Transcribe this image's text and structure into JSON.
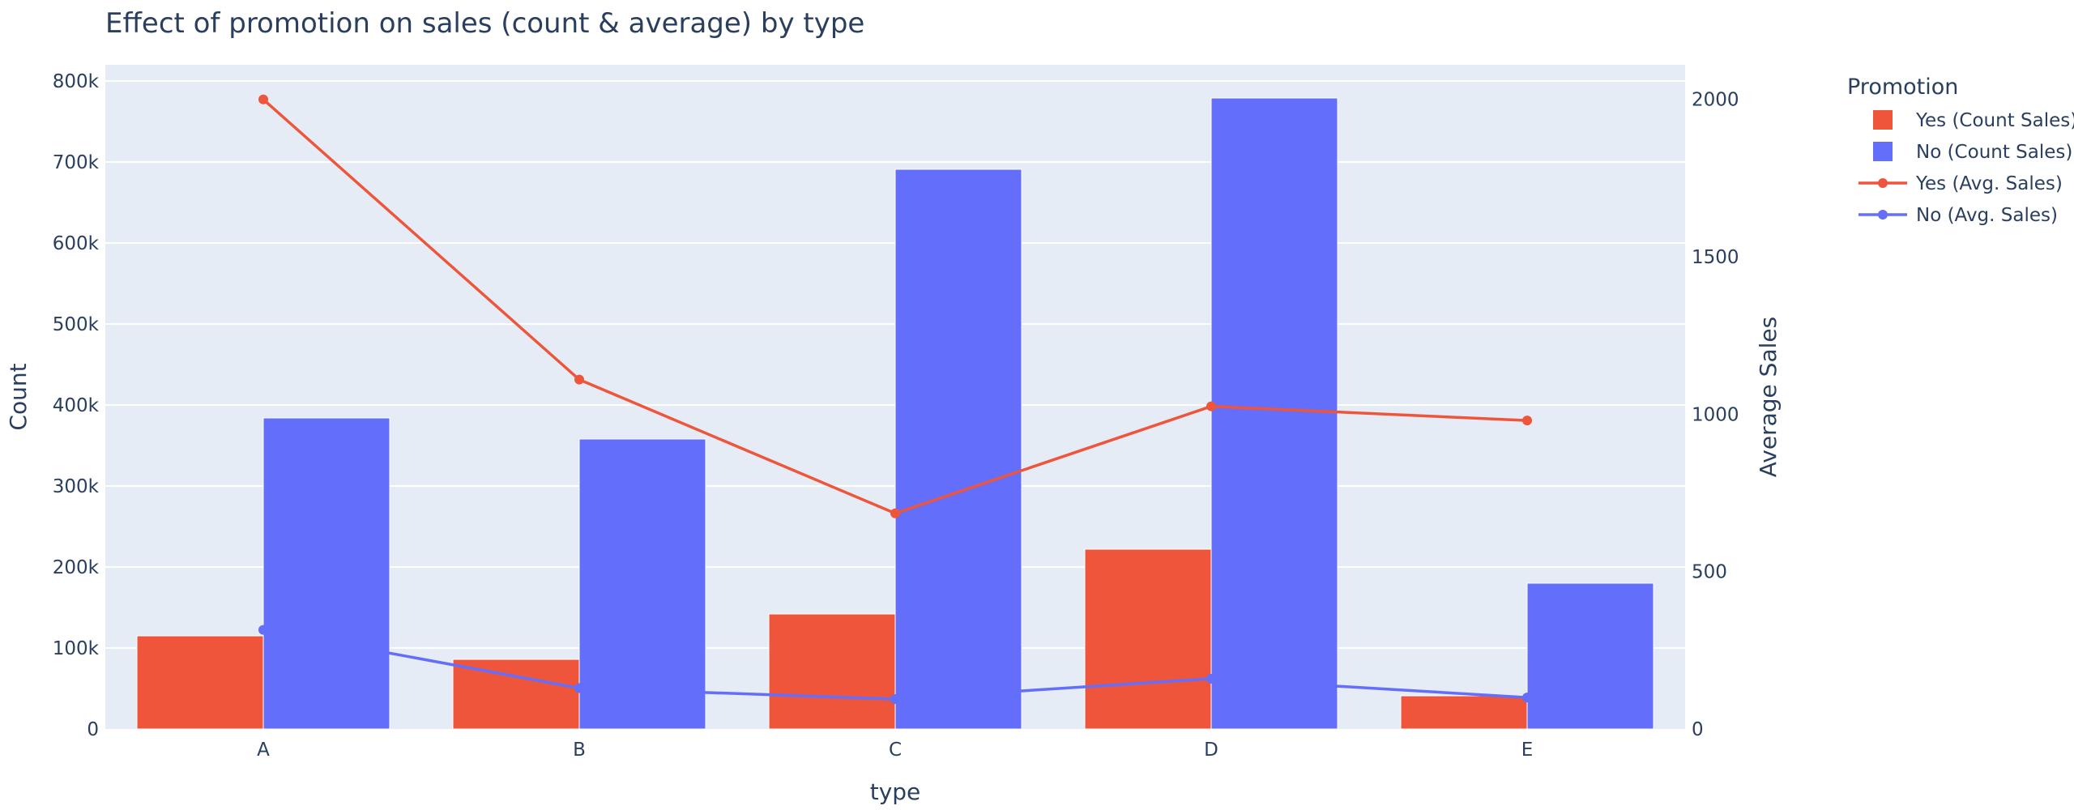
{
  "chart_data": {
    "type": "bar",
    "title": "Effect of promotion on sales (count & average) by type",
    "xlabel": "type",
    "ylabel": "Count",
    "y2label": "Average Sales",
    "categories": [
      "A",
      "B",
      "C",
      "D",
      "E"
    ],
    "ylim": [
      0,
      820000
    ],
    "y2lim": [
      0,
      2110
    ],
    "y_ticks": [
      0,
      100000,
      200000,
      300000,
      400000,
      500000,
      600000,
      700000,
      800000
    ],
    "y_tick_labels": [
      "0",
      "100k",
      "200k",
      "300k",
      "400k",
      "500k",
      "600k",
      "700k",
      "800k"
    ],
    "y2_ticks": [
      0,
      500,
      1000,
      1500,
      2000
    ],
    "y2_tick_labels": [
      "0",
      "500",
      "1000",
      "1500",
      "2000"
    ],
    "legend_title": "Promotion",
    "legend_position": "right",
    "series": [
      {
        "name": "Yes (Count Sales)",
        "kind": "bar",
        "axis": "y",
        "color": "#EF553B",
        "values": [
          115000,
          86000,
          142000,
          222000,
          41000
        ]
      },
      {
        "name": "No (Count Sales)",
        "kind": "bar",
        "axis": "y",
        "color": "#636EFA",
        "values": [
          384000,
          358000,
          691000,
          779000,
          180000
        ]
      },
      {
        "name": "Yes (Avg. Sales)",
        "kind": "line",
        "axis": "y2",
        "color": "#EF553B",
        "values": [
          2000,
          1110,
          685,
          1025,
          980
        ]
      },
      {
        "name": "No (Avg. Sales)",
        "kind": "line",
        "axis": "y2",
        "color": "#636EFA",
        "values": [
          315,
          130,
          95,
          160,
          100
        ]
      }
    ]
  },
  "colors": {
    "plot_bg": "#E5ECF6",
    "grid": "#ffffff",
    "text": "#2a3f5f"
  }
}
